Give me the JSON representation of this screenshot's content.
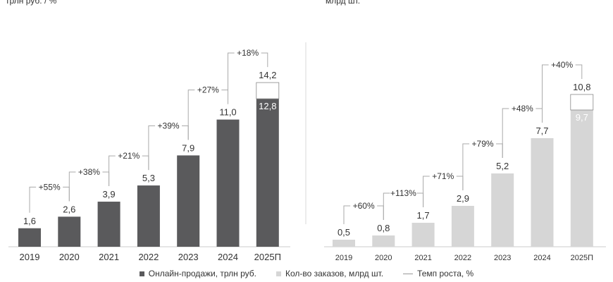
{
  "chart_data": [
    {
      "type": "bar",
      "units_label": "трлн руб. / %",
      "categories": [
        "2019",
        "2020",
        "2021",
        "2022",
        "2023",
        "2024",
        "2025П"
      ],
      "values": [
        1.6,
        2.6,
        3.9,
        5.3,
        7.9,
        11.0,
        12.8
      ],
      "value_labels": [
        "1,6",
        "2,6",
        "3,9",
        "5,3",
        "7,9",
        "11,0",
        "12,8"
      ],
      "forecast_total": 14.2,
      "forecast_total_label": "14,2",
      "growth_labels": [
        "+55%",
        "+38%",
        "+21%",
        "+39%",
        "+27%",
        "+18%"
      ],
      "color": "#5a5a5c"
    },
    {
      "type": "bar",
      "units_label": "млрд шт.",
      "categories": [
        "2019",
        "2020",
        "2021",
        "2022",
        "2023",
        "2024",
        "2025П"
      ],
      "values": [
        0.5,
        0.8,
        1.7,
        2.9,
        5.2,
        7.7,
        9.7
      ],
      "value_labels": [
        "0,5",
        "0,8",
        "1,7",
        "2,9",
        "5,2",
        "7,7",
        "9,7"
      ],
      "forecast_total": 10.8,
      "forecast_total_label": "10,8",
      "growth_labels": [
        "+60%",
        "+113%",
        "+71%",
        "+79%",
        "+48%",
        "+40%"
      ],
      "color": "#d6d6d6"
    }
  ],
  "legend": {
    "sales": "Онлайн-продажи, трлн руб.",
    "orders": "Кол-во заказов, млрд шт.",
    "growth": "Темп роста, %"
  },
  "colors": {
    "sales": "#5a5a5c",
    "orders": "#d6d6d6",
    "bracket": "#aaaaaa",
    "axis": "#cccccc"
  }
}
